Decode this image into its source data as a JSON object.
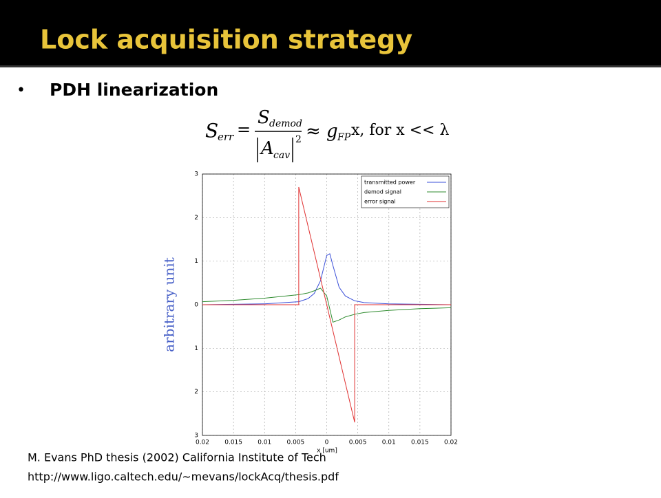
{
  "slide": {
    "title": "Lock acquisition strategy",
    "bullet": "•",
    "bullet_text": "PDH linearization",
    "equation": {
      "lhs": "S",
      "lhs_sub": "err",
      "equals": "=",
      "num": "S",
      "num_sub": "demod",
      "den": "A",
      "den_sub": "cav",
      "den_sup": "2",
      "approx": "≈ g",
      "approx_sub": "FP",
      "tail": "x, for x << λ"
    },
    "citation": "M. Evans PhD thesis (2002) California Institute of Tech",
    "url": "http://www.ligo.caltech.edu/~mevans/lockAcq/thesis.pdf"
  },
  "chart_data": {
    "type": "line",
    "x_label": "x [um]",
    "y_label": "arbitrary unit",
    "x": [
      -0.02,
      -0.015,
      -0.01,
      -0.0045,
      -0.0045,
      -0.003,
      -0.002,
      -0.001,
      0,
      0.0005,
      0.001,
      0.002,
      0.003,
      0.0045,
      0.0045,
      0.006,
      0.01,
      0.015,
      0.02
    ],
    "series": [
      {
        "name": "transmitted power",
        "color": "#3a4fd8",
        "values": [
          0,
          0.01,
          0.02,
          0.07,
          0.07,
          0.14,
          0.26,
          0.55,
          1.13,
          1.17,
          0.9,
          0.4,
          0.2,
          0.09,
          0.09,
          0.05,
          0.02,
          0.01,
          0
        ]
      },
      {
        "name": "demod signal",
        "color": "#2e8b2e",
        "values": [
          0.07,
          0.1,
          0.15,
          0.23,
          0.23,
          0.27,
          0.32,
          0.38,
          0.2,
          -0.1,
          -0.4,
          -0.35,
          -0.28,
          -0.22,
          -0.22,
          -0.18,
          -0.13,
          -0.09,
          -0.07
        ]
      },
      {
        "name": "error signal",
        "color": "#e03030",
        "values": [
          0,
          0,
          0,
          0,
          2.7,
          1.8,
          1.2,
          0.6,
          0,
          -0.3,
          -0.6,
          -1.2,
          -1.8,
          -2.7,
          0,
          0,
          0,
          0,
          0
        ]
      }
    ],
    "xlim": [
      -0.02,
      0.02
    ],
    "ylim": [
      -3,
      3
    ],
    "xticks": [
      {
        "value": -0.02,
        "label": "0.02"
      },
      {
        "value": -0.015,
        "label": "0.015"
      },
      {
        "value": -0.01,
        "label": "0.01"
      },
      {
        "value": -0.005,
        "label": "0.005"
      },
      0,
      0.005,
      0.01,
      0.015,
      0.02
    ],
    "yticks": [
      {
        "value": -3,
        "label": "3"
      },
      {
        "value": -2,
        "label": "2"
      },
      {
        "value": -1,
        "label": "1"
      },
      0,
      1,
      2,
      3
    ],
    "grid": true,
    "legend": "top-right"
  }
}
